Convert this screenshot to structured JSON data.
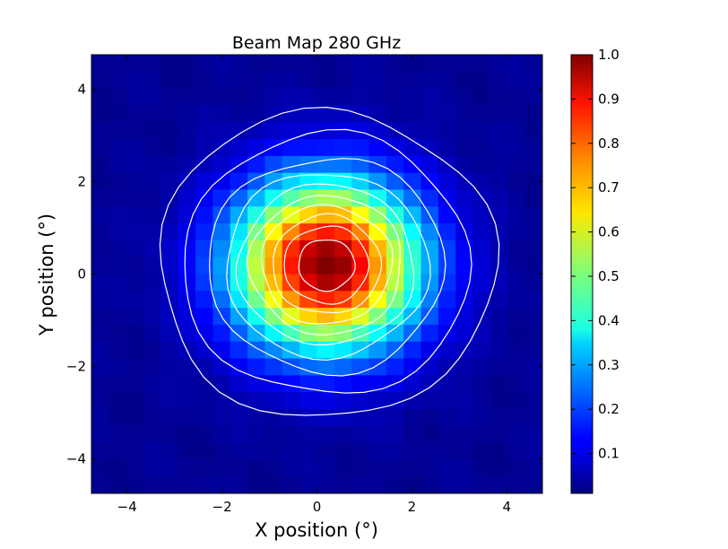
{
  "chart_data": {
    "type": "heatmap",
    "title": "Beam Map 280 GHz",
    "xlabel": "X position (°)",
    "ylabel": "Y position (°)",
    "xlim": [
      -4.75,
      4.75
    ],
    "ylim": [
      -4.75,
      4.75
    ],
    "x_ticks": [
      -4,
      -2,
      0,
      2,
      4
    ],
    "x_tick_labels": [
      "−4",
      "−2",
      "0",
      "2",
      "4"
    ],
    "y_ticks": [
      4,
      2,
      0,
      -2,
      -4
    ],
    "y_tick_labels": [
      "4",
      "2",
      "0",
      "−2",
      "−4"
    ],
    "grid": false,
    "colormap": "jet",
    "colorbar": {
      "range": [
        0.01,
        1.0
      ],
      "ticks": [
        0.1,
        0.2,
        0.3,
        0.4,
        0.5,
        0.6,
        0.7,
        0.8,
        0.9,
        1.0
      ],
      "tick_labels": [
        "0.1",
        "0.2",
        "0.3",
        "0.4",
        "0.5",
        "0.6",
        "0.7",
        "0.8",
        "0.9",
        "1.0"
      ]
    },
    "beam": {
      "center": [
        0.2,
        0.2
      ],
      "fwhm_x_deg": 3.2,
      "fwhm_y_deg": 3.0,
      "peak": 1.0,
      "background": 0.03,
      "grid_cells": 26
    },
    "contour_levels": [
      0.05,
      0.1,
      0.2,
      0.3,
      0.4,
      0.5,
      0.6,
      0.7,
      0.8,
      0.9
    ],
    "contour_color": "#ffffff"
  }
}
